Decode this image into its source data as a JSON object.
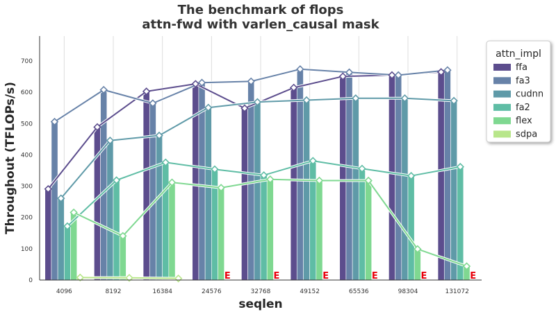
{
  "chart_data": {
    "type": "bar",
    "title": "The benchmark of flops",
    "subtitle": "attn-fwd with varlen_causal mask",
    "xlabel": "seqlen",
    "ylabel": "Throughout (TFLOPs/s)",
    "ylim": [
      0,
      780
    ],
    "yticks": [
      0,
      100,
      200,
      300,
      400,
      500,
      600,
      700
    ],
    "categories": [
      "4096",
      "8192",
      "16384",
      "24576",
      "32768",
      "49152",
      "65536",
      "98304",
      "131072"
    ],
    "legend_title": "attn_impl",
    "legend_position": "top-right",
    "grid": "vertical",
    "error_marker": "E",
    "series": [
      {
        "name": "ffa",
        "color": "#5c4d8d",
        "values": [
          291,
          489,
          603,
          627,
          549,
          615,
          651,
          655,
          665
        ]
      },
      {
        "name": "fa3",
        "color": "#6782a8",
        "values": [
          506,
          608,
          565,
          631,
          635,
          674,
          664,
          655,
          671
        ]
      },
      {
        "name": "cudnn",
        "color": "#5f9aa8",
        "values": [
          261,
          446,
          462,
          551,
          569,
          575,
          581,
          581,
          573
        ]
      },
      {
        "name": "fa2",
        "color": "#5fbda5",
        "values": [
          172,
          319,
          376,
          354,
          335,
          381,
          356,
          333,
          362
        ]
      },
      {
        "name": "flex",
        "color": "#7fd891",
        "values": [
          216,
          141,
          312,
          295,
          322,
          318,
          318,
          99,
          44
        ]
      },
      {
        "name": "sdpa",
        "color": "#b8e68a",
        "values": [
          8,
          7,
          5,
          null,
          null,
          null,
          null,
          null,
          null
        ]
      }
    ]
  }
}
